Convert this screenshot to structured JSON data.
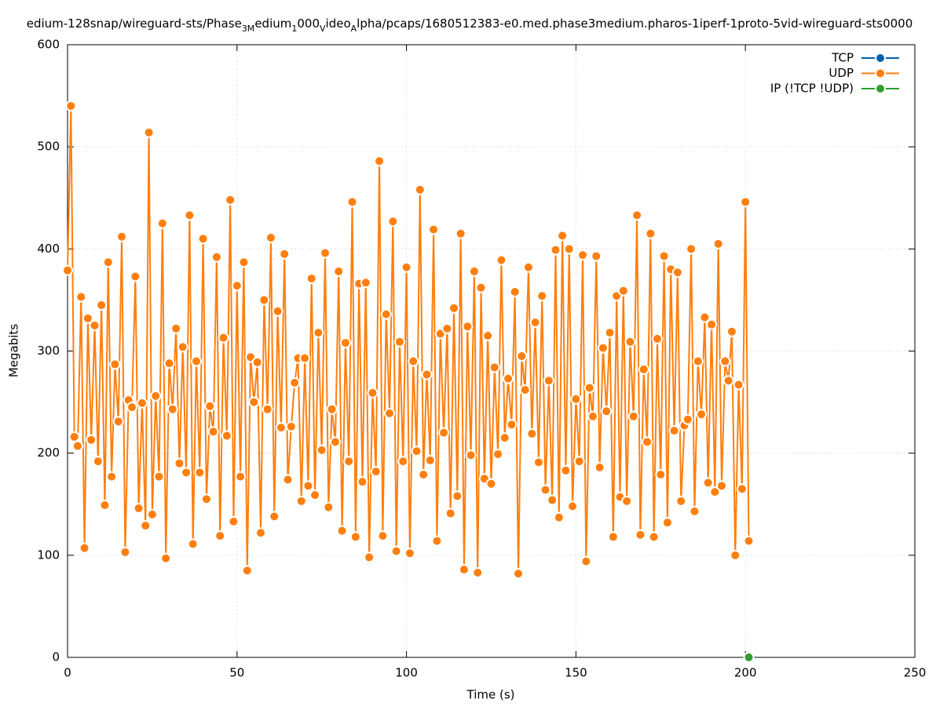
{
  "chart_data": {
    "type": "line",
    "title_parts": [
      {
        "text": "edium-128snap/wireguard-sts/Phase",
        "sub": false
      },
      {
        "text": "3M",
        "sub": true
      },
      {
        "text": "edium",
        "sub": false
      },
      {
        "text": "1",
        "sub": true
      },
      {
        "text": "000",
        "sub": false
      },
      {
        "text": "V",
        "sub": true
      },
      {
        "text": "ideo",
        "sub": false
      },
      {
        "text": "A",
        "sub": true
      },
      {
        "text": "lpha/pcaps/1680512383-e0.med.phase3medium.pharos-1iperf-1proto-5vid-wireguard-sts0000",
        "sub": false
      }
    ],
    "x_label": "Time (s)",
    "y_label": "Megabits",
    "xlim": [
      0,
      250
    ],
    "xticks": [
      0,
      50,
      100,
      150,
      200,
      250
    ],
    "ylim": [
      0,
      600
    ],
    "yticks": [
      0,
      100,
      200,
      300,
      400,
      500,
      600
    ],
    "grid": true,
    "legend": "top-right",
    "series": [
      {
        "name": "TCP",
        "color": "#0060ad",
        "x": [],
        "values": []
      },
      {
        "name": "UDP",
        "color": "#ff7f0e",
        "x": [
          0,
          1,
          2,
          3,
          4,
          5,
          6,
          7,
          8,
          9,
          10,
          11,
          12,
          13,
          14,
          15,
          16,
          17,
          18,
          19,
          20,
          21,
          22,
          23,
          24,
          25,
          26,
          27,
          28,
          29,
          30,
          31,
          32,
          33,
          34,
          35,
          36,
          37,
          38,
          39,
          40,
          41,
          42,
          43,
          44,
          45,
          46,
          47,
          48,
          49,
          50,
          51,
          52,
          53,
          54,
          55,
          56,
          57,
          58,
          59,
          60,
          61,
          62,
          63,
          64,
          65,
          66,
          67,
          68,
          69,
          70,
          71,
          72,
          73,
          74,
          75,
          76,
          77,
          78,
          79,
          80,
          81,
          82,
          83,
          84,
          85,
          86,
          87,
          88,
          89,
          90,
          91,
          92,
          93,
          94,
          95,
          96,
          97,
          98,
          99,
          100,
          101,
          102,
          103,
          104,
          105,
          106,
          107,
          108,
          109,
          110,
          111,
          112,
          113,
          114,
          115,
          116,
          117,
          118,
          119,
          120,
          121,
          122,
          123,
          124,
          125,
          126,
          127,
          128,
          129,
          130,
          131,
          132,
          133,
          134,
          135,
          136,
          137,
          138,
          139,
          140,
          141,
          142,
          143,
          144,
          145,
          146,
          147,
          148,
          149,
          150,
          151,
          152,
          153,
          154,
          155,
          156,
          157,
          158,
          159,
          160,
          161,
          162,
          163,
          164,
          165,
          166,
          167,
          168,
          169,
          170,
          171,
          172,
          173,
          174,
          175,
          176,
          177,
          178,
          179,
          180,
          181,
          182,
          183,
          184,
          185,
          186,
          187,
          188,
          189,
          190,
          191,
          192,
          193,
          194,
          195,
          196,
          197,
          198,
          199,
          200,
          201
        ],
        "values": [
          379,
          540,
          216,
          207,
          353,
          107,
          332,
          213,
          325,
          192,
          345,
          149,
          387,
          177,
          287,
          231,
          412,
          103,
          252,
          245,
          373,
          146,
          249,
          129,
          514,
          140,
          256,
          177,
          425,
          97,
          288,
          243,
          322,
          190,
          304,
          181,
          433,
          111,
          290,
          181,
          410,
          155,
          246,
          221,
          392,
          119,
          313,
          217,
          448,
          133,
          364,
          177,
          387,
          85,
          294,
          250,
          289,
          122,
          350,
          243,
          411,
          138,
          339,
          225,
          395,
          174,
          226,
          269,
          293,
          153,
          293,
          168,
          371,
          159,
          318,
          203,
          396,
          147,
          243,
          211,
          378,
          124,
          308,
          192,
          446,
          118,
          366,
          172,
          367,
          98,
          259,
          182,
          486,
          119,
          336,
          239,
          427,
          104,
          309,
          192,
          382,
          102,
          290,
          202,
          458,
          179,
          277,
          193,
          419,
          114,
          317,
          220,
          322,
          141,
          342,
          158,
          415,
          86,
          324,
          198,
          378,
          83,
          362,
          175,
          315,
          170,
          284,
          199,
          389,
          215,
          273,
          228,
          358,
          82,
          295,
          262,
          382,
          219,
          328,
          191,
          354,
          164,
          271,
          154,
          399,
          137,
          413,
          183,
          400,
          148,
          253,
          192,
          394,
          94,
          264,
          236,
          393,
          186,
          303,
          241,
          318,
          118,
          354,
          157,
          359,
          153,
          309,
          236,
          433,
          120,
          282,
          211,
          415,
          118,
          312,
          179,
          393,
          132,
          380,
          222,
          377,
          153,
          227,
          233,
          400,
          143,
          290,
          238,
          333,
          171,
          326,
          162,
          405,
          168,
          290,
          271,
          319,
          100,
          267,
          165,
          446,
          114
        ]
      },
      {
        "name": "IP (!TCP  !UDP)",
        "color": "#2ca02c",
        "x": [
          201
        ],
        "values": [
          0
        ]
      }
    ]
  }
}
